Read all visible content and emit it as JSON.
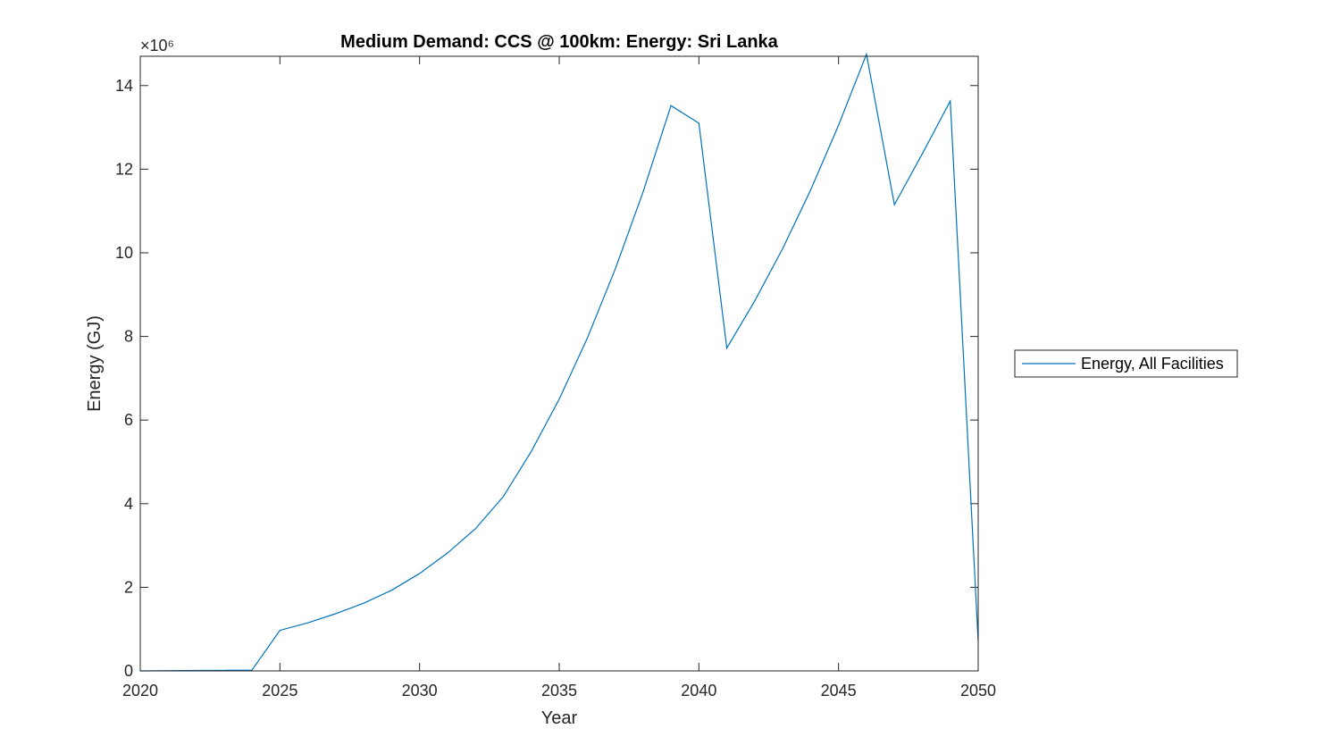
{
  "chart_data": {
    "type": "line",
    "title": "Medium Demand: CCS @ 100km: Energy: Sri Lanka",
    "xlabel": "Year",
    "ylabel": "Energy (GJ)",
    "y_exponent_label": "×10⁶",
    "y_scale_factor": 1000000,
    "xlim": [
      2020,
      2050
    ],
    "ylim": [
      0,
      14700000
    ],
    "xticks": [
      2020,
      2025,
      2030,
      2035,
      2040,
      2045,
      2050
    ],
    "yticks": [
      0,
      2000000,
      4000000,
      6000000,
      8000000,
      10000000,
      12000000,
      14000000
    ],
    "ytick_labels": [
      "0",
      "2",
      "4",
      "6",
      "8",
      "10",
      "12",
      "14"
    ],
    "xtick_labels": [
      "2020",
      "2025",
      "2030",
      "2035",
      "2040",
      "2045",
      "2050"
    ],
    "grid": false,
    "legend_position": "outside-right",
    "series": [
      {
        "name": "Energy, All Facilities",
        "color": "#0072BD",
        "x": [
          2020,
          2021,
          2022,
          2023,
          2024,
          2025,
          2026,
          2027,
          2028,
          2029,
          2030,
          2031,
          2032,
          2033,
          2034,
          2035,
          2036,
          2037,
          2038,
          2039,
          2040,
          2041,
          2042,
          2043,
          2044,
          2045,
          2046,
          2047,
          2048,
          2049,
          2050
        ],
        "y": [
          0,
          5000,
          10000,
          15000,
          20000,
          970000,
          1150000,
          1370000,
          1620000,
          1930000,
          2330000,
          2820000,
          3400000,
          4170000,
          5250000,
          6500000,
          7950000,
          9600000,
          11450000,
          13520000,
          13100000,
          7720000,
          8850000,
          10100000,
          11500000,
          13050000,
          14750000,
          11150000,
          12370000,
          13630000,
          700000
        ]
      }
    ]
  }
}
